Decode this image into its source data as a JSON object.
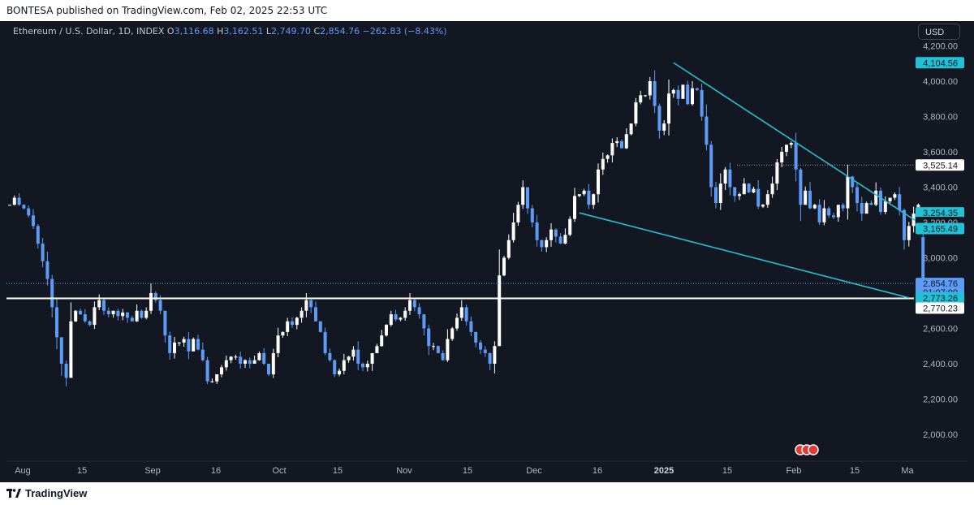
{
  "header": {
    "publish_text": "BONTESA published on TradingView.com, Feb 02, 2025 22:53 UTC"
  },
  "footer": {
    "brand": "TradingView"
  },
  "legend": {
    "symbol": "Ethereum / U.S. Dollar, 1D, INDEX",
    "open_label": "O",
    "open": "3,116.68",
    "high_label": "H",
    "high": "3,162.51",
    "low_label": "L",
    "low": "2,749.70",
    "close_label": "C",
    "close": "2,854.76",
    "change": "−262.83 (−8.43%)"
  },
  "currency_button": "USD",
  "colors": {
    "background": "#131722",
    "up": "#ffffff",
    "down": "#5b9cf6",
    "trendline": "#22c1d6",
    "axis_text": "#b2b5be"
  },
  "chart_data": {
    "type": "candlestick",
    "xlabel": "",
    "ylabel": "",
    "ylim": [
      1950,
      4300
    ],
    "y_ticks": [
      "2,000.00",
      "2,200.00",
      "2,400.00",
      "2,600.00",
      "3,000.00",
      "3,200.00",
      "3,400.00",
      "3,600.00",
      "3,800.00",
      "4,000.00",
      "4,200.00"
    ],
    "x_ticks": [
      "Aug",
      "15",
      "Sep",
      "16",
      "Oct",
      "15",
      "Nov",
      "15",
      "Dec",
      "16",
      "2025",
      "15",
      "Feb",
      "15",
      "Ma"
    ],
    "last_bar": {
      "open": 3116.68,
      "high": 3162.51,
      "low": 2749.7,
      "close": 2854.76
    },
    "price_labels": [
      {
        "value": "4,104.56",
        "style": "teal"
      },
      {
        "value": "3,525.14",
        "style": "white"
      },
      {
        "value": "3,254.35",
        "style": "teal"
      },
      {
        "value": "3,200.00",
        "style": "plain"
      },
      {
        "value": "3,165.49",
        "style": "teal"
      },
      {
        "value": "2,854.76",
        "style": "blue"
      },
      {
        "value": "01:07:00",
        "style": "blue"
      },
      {
        "value": "2,773.26",
        "style": "teal"
      },
      {
        "value": "2,770.23",
        "style": "white"
      }
    ],
    "horizontal_levels": [
      {
        "price": 2770.23,
        "style": "solid"
      },
      {
        "price": 3525.14,
        "style": "dotted"
      },
      {
        "price": 2854.76,
        "style": "dotted"
      }
    ],
    "trendlines": [
      {
        "from": {
          "date": "2024-12-16",
          "price": 4104.56
        },
        "to": {
          "date": "2025-02-08",
          "price": 3165.49
        }
      },
      {
        "from": {
          "date": "2024-11-26",
          "price": 3254.35
        },
        "to": {
          "date": "2025-02-04",
          "price": 2773.26
        }
      }
    ],
    "candles_close": [
      3300,
      3340,
      3300,
      3280,
      3240,
      3180,
      3080,
      2980,
      2880,
      2720,
      2550,
      2400,
      2320,
      2640,
      2700,
      2680,
      2640,
      2620,
      2720,
      2760,
      2700,
      2680,
      2700,
      2670,
      2690,
      2660,
      2640,
      2700,
      2660,
      2700,
      2800,
      2760,
      2700,
      2560,
      2460,
      2520,
      2520,
      2540,
      2470,
      2540,
      2480,
      2420,
      2300,
      2300,
      2340,
      2380,
      2420,
      2440,
      2440,
      2400,
      2420,
      2400,
      2420,
      2460,
      2400,
      2340,
      2460,
      2560,
      2580,
      2640,
      2620,
      2660,
      2700,
      2760,
      2720,
      2640,
      2580,
      2460,
      2420,
      2340,
      2360,
      2420,
      2440,
      2480,
      2400,
      2380,
      2400,
      2460,
      2500,
      2560,
      2620,
      2680,
      2650,
      2660,
      2700,
      2760,
      2720,
      2680,
      2600,
      2500,
      2500,
      2460,
      2420,
      2540,
      2600,
      2660,
      2720,
      2640,
      2580,
      2520,
      2480,
      2460,
      2400,
      2500,
      2900,
      3000,
      3100,
      3200,
      3300,
      3400,
      3280,
      3200,
      3100,
      3060,
      3100,
      3160,
      3120,
      3080,
      3130,
      3220,
      3350,
      3360,
      3380,
      3300,
      3360,
      3500,
      3560,
      3580,
      3650,
      3660,
      3620,
      3700,
      3760,
      3880,
      3920,
      3920,
      4000,
      3860,
      3720,
      3760,
      3930,
      3950,
      3900,
      3980,
      3870,
      3960,
      3950,
      3800,
      3640,
      3400,
      3310,
      3420,
      3500,
      3400,
      3350,
      3360,
      3420,
      3370,
      3390,
      3290,
      3300,
      3360,
      3420,
      3540,
      3600,
      3640,
      3650,
      3500,
      3300,
      3380,
      3280,
      3300,
      3200,
      3280,
      3240,
      3230,
      3300,
      3280,
      3460,
      3400,
      3310,
      3250,
      3310,
      3300,
      3380,
      3260,
      3320,
      3340,
      3360,
      3270,
      3100,
      3180,
      3250,
      3300,
      2854.76
    ]
  }
}
